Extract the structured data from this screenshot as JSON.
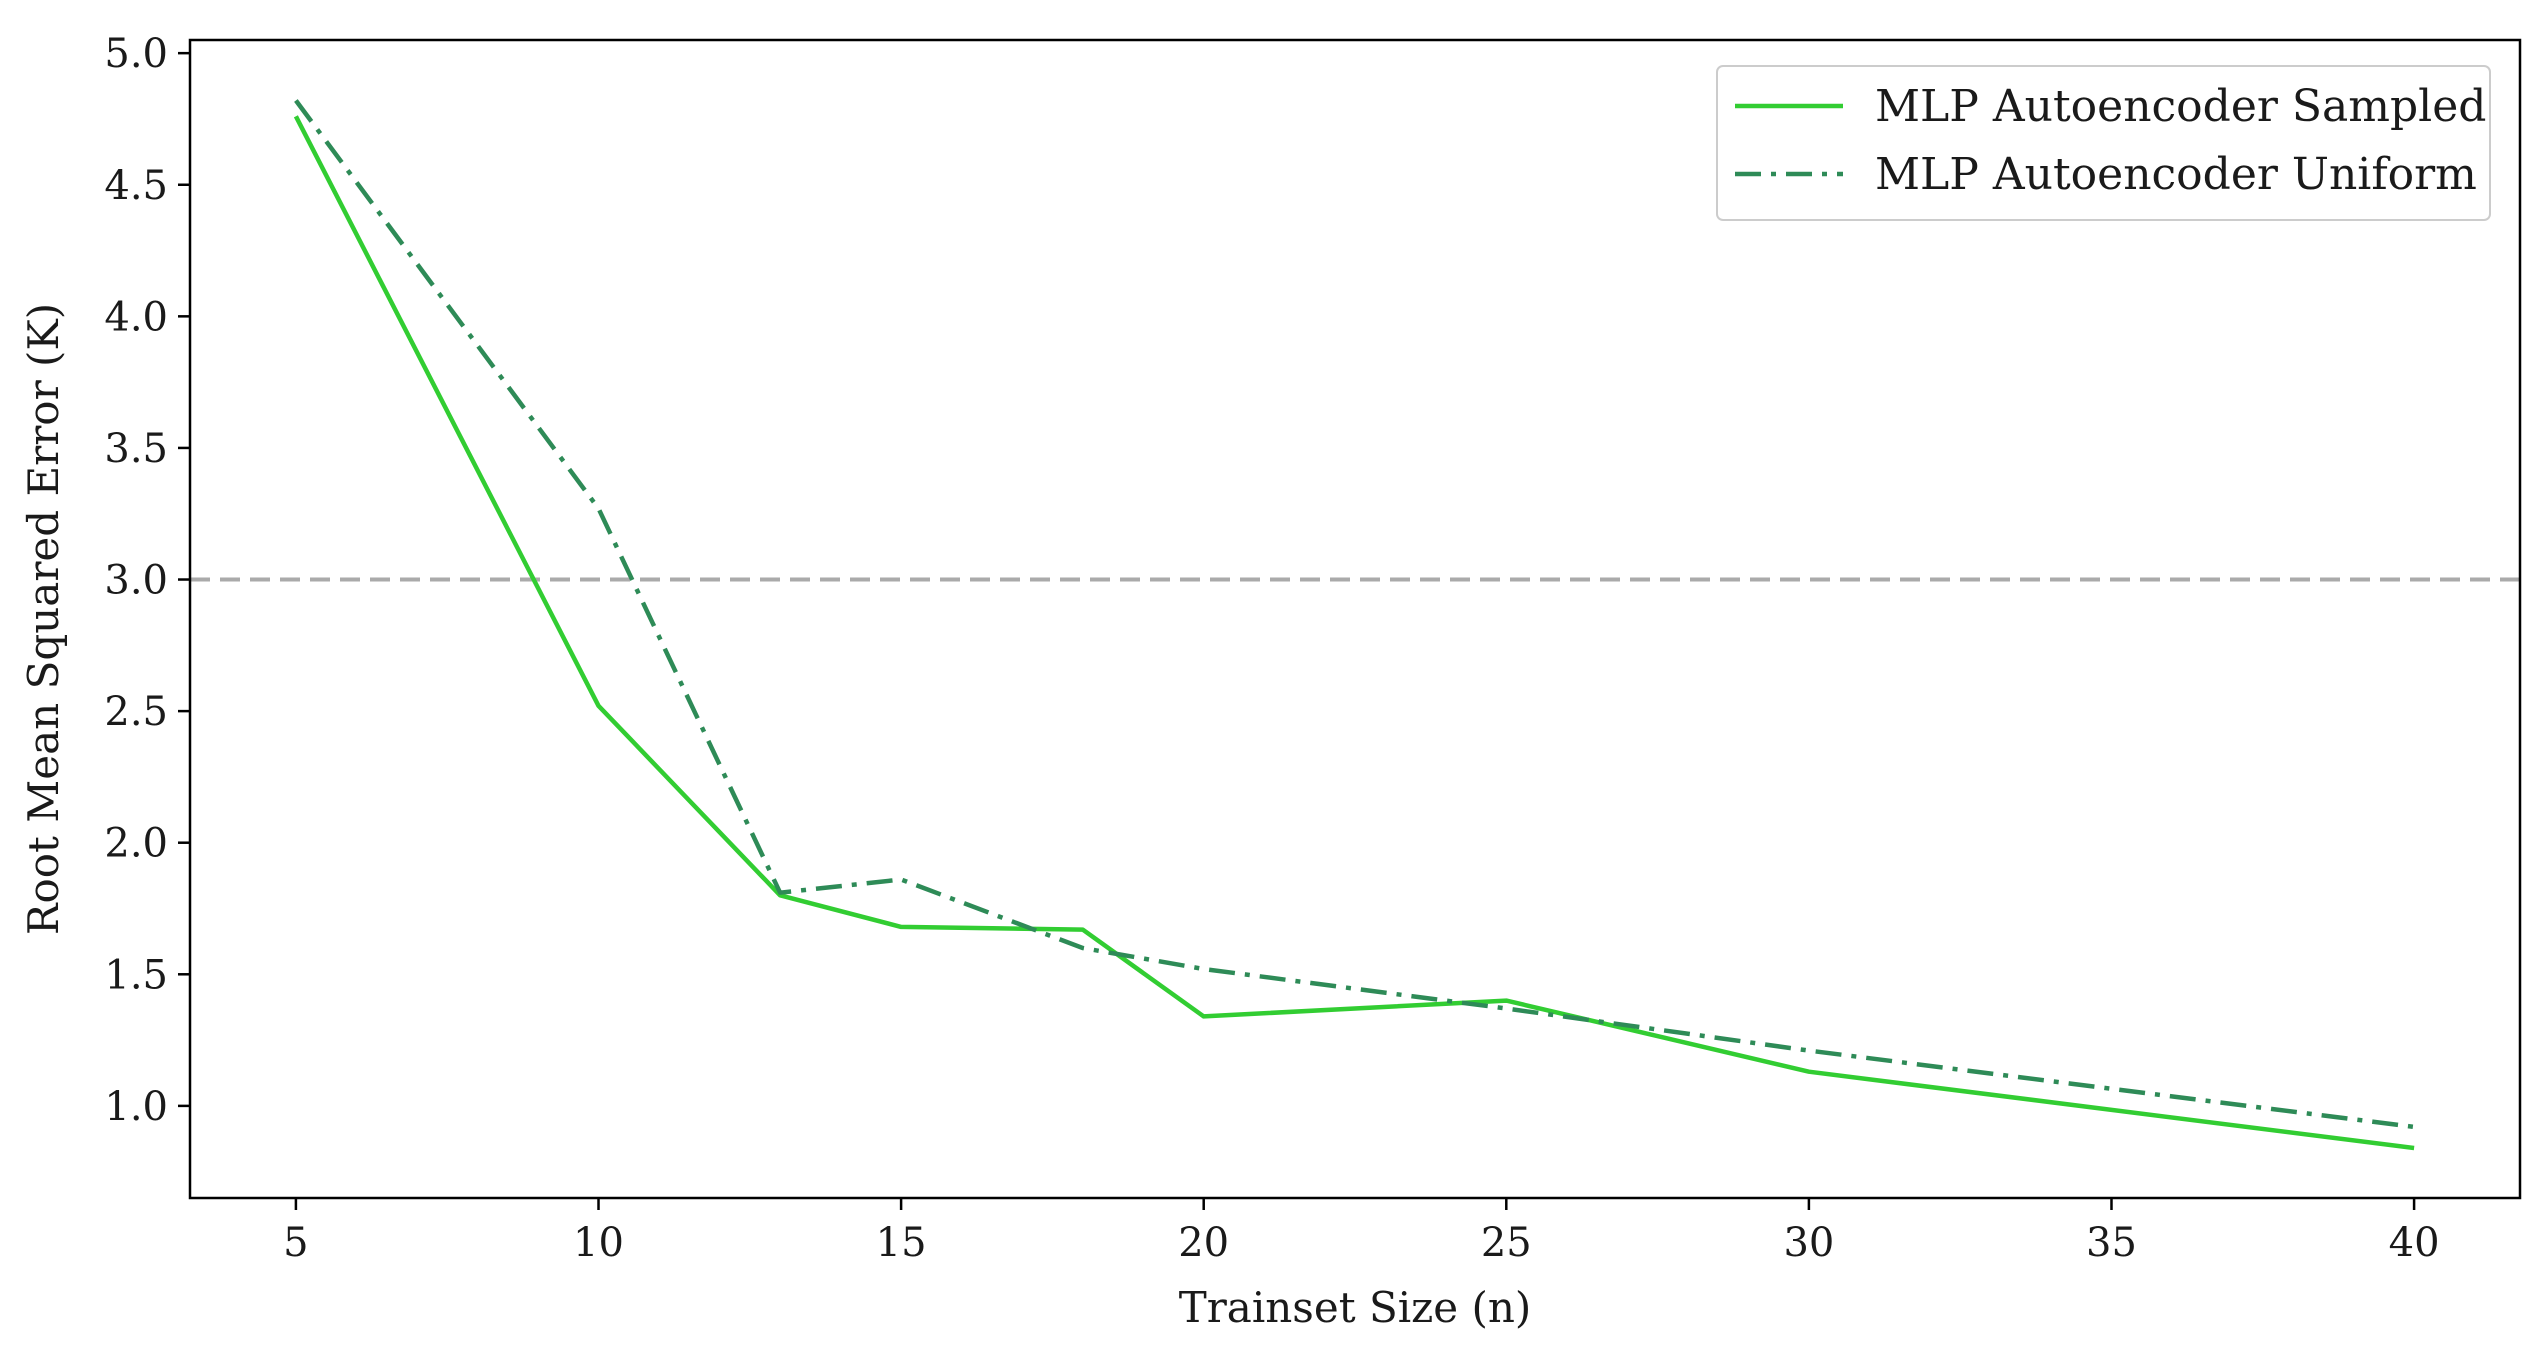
{
  "chart_data": {
    "type": "line",
    "xlabel": "Trainset Size (n)",
    "ylabel": "Root Mean Squared Error (K)",
    "xlim": [
      3.25,
      41.75
    ],
    "ylim": [
      0.65,
      5.05
    ],
    "xticks": [
      5,
      10,
      15,
      20,
      25,
      30,
      35,
      40
    ],
    "yticks": [
      1.0,
      1.5,
      2.0,
      2.5,
      3.0,
      3.5,
      4.0,
      4.5,
      5.0
    ],
    "grid": false,
    "legend_position": "top-right",
    "reference_line": {
      "y": 3.0,
      "style": "dashed",
      "color": "#aaaaaa"
    },
    "series": [
      {
        "name": "MLP Autoencoder Sampled",
        "color": "#32cd32",
        "style": "solid",
        "x": [
          5,
          10,
          13,
          15,
          18,
          20,
          25,
          30,
          40
        ],
        "y": [
          4.76,
          2.52,
          1.8,
          1.68,
          1.67,
          1.34,
          1.4,
          1.13,
          0.84
        ]
      },
      {
        "name": "MLP Autoencoder Uniform",
        "color": "#2e8b57",
        "style": "dashdot",
        "x": [
          5,
          10,
          13,
          15,
          18,
          20,
          25,
          30,
          40
        ],
        "y": [
          4.82,
          3.27,
          1.81,
          1.86,
          1.6,
          1.52,
          1.37,
          1.21,
          0.92
        ]
      }
    ]
  }
}
